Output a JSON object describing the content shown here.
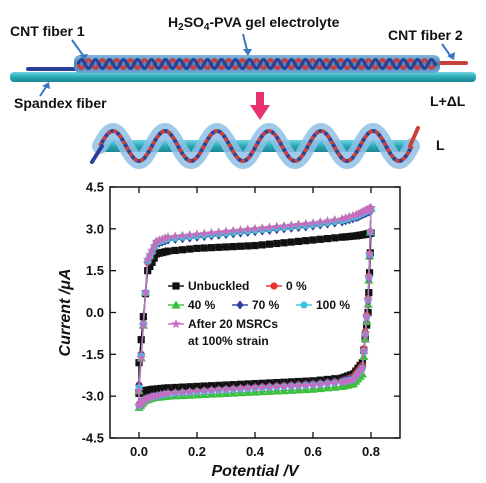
{
  "schematic": {
    "labels": {
      "cnt_fiber_1": "CNT fiber 1",
      "electrolyte_main": "H",
      "electrolyte_sub1": "2",
      "electrolyte_mid": "SO",
      "electrolyte_sub2": "4",
      "electrolyte_rest": "-PVA  gel electrolyte",
      "cnt_fiber_2": "CNT fiber 2",
      "spandex_fiber": "Spandex fiber",
      "stretched_length": "L+ΔL",
      "relaxed_length": "L"
    },
    "colors": {
      "spandex": "#2bb3c0",
      "gel": "#4a90c2",
      "fiber_red": "#c8403a",
      "fiber_blue": "#2a3f9a",
      "arrow": "#e8336e",
      "pointer": "#3a78c0"
    }
  },
  "chart_data": {
    "type": "line",
    "title": "",
    "xlabel": "Potential /V",
    "ylabel": "Current /μA",
    "xlim": [
      -0.1,
      0.9
    ],
    "ylim": [
      -4.5,
      4.5
    ],
    "xticks": [
      "0.0",
      "0.2",
      "0.4",
      "0.6",
      "0.8"
    ],
    "yticks": [
      "-4.5",
      "-3.0",
      "-1.5",
      "0.0",
      "1.5",
      "3.0",
      "4.5"
    ],
    "x_tick_values": [
      0.0,
      0.2,
      0.4,
      0.6,
      0.8
    ],
    "y_tick_values": [
      -4.5,
      -3.0,
      -1.5,
      0.0,
      1.5,
      3.0,
      4.5
    ],
    "legend": [
      {
        "text": "Unbuckled",
        "marker": "square",
        "color": "#111111"
      },
      {
        "text": "0 %",
        "marker": "circle",
        "color": "#e8312a"
      },
      {
        "text": "40 %",
        "marker": "triangle",
        "color": "#3cbf3c"
      },
      {
        "text": "70 %",
        "marker": "diamond",
        "color": "#2a3f9a"
      },
      {
        "text": "100 %",
        "marker": "circle",
        "color": "#39c6e0"
      },
      {
        "text": "After 20 MSRCs",
        "text2": "at 100% strain",
        "marker": "star",
        "color": "#c86cc0"
      }
    ],
    "series": [
      {
        "name": "Unbuckled",
        "color": "#111111",
        "marker": "square",
        "upper": {
          "x": [
            0.0,
            0.03,
            0.06,
            0.1,
            0.2,
            0.3,
            0.4,
            0.5,
            0.6,
            0.7,
            0.75,
            0.78,
            0.8
          ],
          "y": [
            -1.8,
            1.5,
            2.1,
            2.2,
            2.3,
            2.35,
            2.4,
            2.5,
            2.6,
            2.7,
            2.75,
            2.8,
            2.85
          ]
        },
        "lower": {
          "x": [
            0.8,
            0.79,
            0.77,
            0.74,
            0.7,
            0.6,
            0.5,
            0.4,
            0.3,
            0.2,
            0.1,
            0.05,
            0.02,
            0.0
          ],
          "y": [
            2.85,
            0.0,
            -1.8,
            -2.2,
            -2.35,
            -2.45,
            -2.5,
            -2.55,
            -2.6,
            -2.65,
            -2.7,
            -2.75,
            -2.8,
            -2.9
          ]
        }
      },
      {
        "name": "0 %",
        "color": "#e8312a",
        "marker": "circle",
        "upper": {
          "x": [
            0.0,
            0.03,
            0.06,
            0.1,
            0.2,
            0.3,
            0.4,
            0.5,
            0.6,
            0.7,
            0.75,
            0.78,
            0.8
          ],
          "y": [
            -2.6,
            1.8,
            2.5,
            2.65,
            2.75,
            2.85,
            2.95,
            3.05,
            3.15,
            3.3,
            3.45,
            3.6,
            3.7
          ]
        },
        "lower": {
          "x": [
            0.8,
            0.79,
            0.77,
            0.74,
            0.7,
            0.6,
            0.5,
            0.4,
            0.3,
            0.2,
            0.1,
            0.05,
            0.02,
            0.0
          ],
          "y": [
            3.7,
            0.5,
            -1.9,
            -2.3,
            -2.45,
            -2.55,
            -2.62,
            -2.68,
            -2.75,
            -2.82,
            -2.9,
            -3.0,
            -3.1,
            -3.3
          ]
        }
      },
      {
        "name": "40 %",
        "color": "#3cbf3c",
        "marker": "triangle",
        "upper": {
          "x": [
            0.0,
            0.03,
            0.06,
            0.1,
            0.2,
            0.3,
            0.4,
            0.5,
            0.6,
            0.7,
            0.75,
            0.78,
            0.8
          ],
          "y": [
            -2.8,
            1.9,
            2.55,
            2.7,
            2.8,
            2.9,
            3.0,
            3.1,
            3.2,
            3.35,
            3.5,
            3.65,
            3.75
          ]
        },
        "lower": {
          "x": [
            0.8,
            0.79,
            0.77,
            0.74,
            0.7,
            0.6,
            0.5,
            0.4,
            0.3,
            0.2,
            0.1,
            0.05,
            0.02,
            0.0
          ],
          "y": [
            3.75,
            0.3,
            -2.2,
            -2.55,
            -2.65,
            -2.75,
            -2.8,
            -2.85,
            -2.9,
            -2.95,
            -3.0,
            -3.05,
            -3.15,
            -3.4
          ]
        }
      },
      {
        "name": "70 %",
        "color": "#2a3f9a",
        "marker": "diamond",
        "upper": {
          "x": [
            0.0,
            0.03,
            0.06,
            0.1,
            0.2,
            0.3,
            0.4,
            0.5,
            0.6,
            0.7,
            0.75,
            0.78,
            0.8
          ],
          "y": [
            -2.6,
            1.8,
            2.45,
            2.6,
            2.7,
            2.8,
            2.9,
            3.0,
            3.1,
            3.25,
            3.4,
            3.55,
            3.65
          ]
        },
        "lower": {
          "x": [
            0.8,
            0.79,
            0.77,
            0.74,
            0.7,
            0.6,
            0.5,
            0.4,
            0.3,
            0.2,
            0.1,
            0.05,
            0.02,
            0.0
          ],
          "y": [
            3.65,
            0.4,
            -1.95,
            -2.35,
            -2.45,
            -2.55,
            -2.62,
            -2.68,
            -2.75,
            -2.82,
            -2.9,
            -3.0,
            -3.1,
            -3.3
          ]
        }
      },
      {
        "name": "100 %",
        "color": "#39c6e0",
        "marker": "circle",
        "upper": {
          "x": [
            0.0,
            0.03,
            0.06,
            0.1,
            0.2,
            0.3,
            0.4,
            0.5,
            0.6,
            0.7,
            0.75,
            0.78,
            0.8
          ],
          "y": [
            -2.7,
            1.85,
            2.5,
            2.65,
            2.75,
            2.85,
            2.95,
            3.05,
            3.15,
            3.3,
            3.45,
            3.6,
            3.7
          ]
        },
        "lower": {
          "x": [
            0.8,
            0.79,
            0.77,
            0.74,
            0.7,
            0.6,
            0.5,
            0.4,
            0.3,
            0.2,
            0.1,
            0.05,
            0.02,
            0.0
          ],
          "y": [
            3.7,
            0.45,
            -2.0,
            -2.4,
            -2.5,
            -2.6,
            -2.66,
            -2.72,
            -2.78,
            -2.85,
            -2.92,
            -3.02,
            -3.12,
            -3.35
          ]
        }
      },
      {
        "name": "After 20 MSRCs at 100% strain",
        "color": "#c86cc0",
        "marker": "star",
        "upper": {
          "x": [
            0.0,
            0.03,
            0.06,
            0.1,
            0.2,
            0.3,
            0.4,
            0.5,
            0.6,
            0.7,
            0.75,
            0.78,
            0.8
          ],
          "y": [
            -2.8,
            1.9,
            2.55,
            2.7,
            2.8,
            2.9,
            3.0,
            3.1,
            3.2,
            3.35,
            3.5,
            3.65,
            3.75
          ]
        },
        "lower": {
          "x": [
            0.8,
            0.79,
            0.77,
            0.74,
            0.7,
            0.6,
            0.5,
            0.4,
            0.3,
            0.2,
            0.1,
            0.05,
            0.02,
            0.0
          ],
          "y": [
            3.75,
            0.45,
            -2.0,
            -2.4,
            -2.5,
            -2.6,
            -2.65,
            -2.7,
            -2.76,
            -2.83,
            -2.9,
            -3.0,
            -3.12,
            -3.35
          ]
        }
      }
    ]
  }
}
